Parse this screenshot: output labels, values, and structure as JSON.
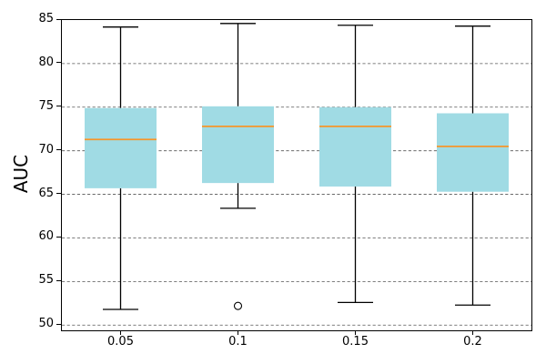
{
  "chart_data": {
    "type": "boxplot",
    "title": "",
    "xlabel": "",
    "ylabel": "AUC",
    "categories": [
      "0.05",
      "0.1",
      "0.15",
      "0.2"
    ],
    "yticks": [
      50,
      55,
      60,
      65,
      70,
      75,
      80,
      85
    ],
    "ylim": [
      49.4,
      85.0
    ],
    "grid": {
      "axis": "y",
      "style": "dashed",
      "visible": true
    },
    "legend": {
      "visible": false
    },
    "boxes": [
      {
        "category": "0.05",
        "whisker_low": 51.8,
        "q1": 65.7,
        "median": 71.3,
        "q3": 74.9,
        "whisker_high": 84.2,
        "outliers": []
      },
      {
        "category": "0.1",
        "whisker_low": 63.4,
        "q1": 66.3,
        "median": 72.8,
        "q3": 75.1,
        "whisker_high": 84.6,
        "outliers": [
          52.2
        ]
      },
      {
        "category": "0.15",
        "whisker_low": 52.6,
        "q1": 65.9,
        "median": 72.8,
        "q3": 75.0,
        "whisker_high": 84.4,
        "outliers": []
      },
      {
        "category": "0.2",
        "whisker_low": 52.3,
        "q1": 65.3,
        "median": 70.5,
        "q3": 74.3,
        "whisker_high": 84.3,
        "outliers": []
      }
    ],
    "colors": {
      "box_fill": "#A0DBE4",
      "median": "#F5962B",
      "whisker": "#000000",
      "grid": "#555555",
      "outlier_edge": "#000000",
      "spine": "#000000"
    }
  }
}
